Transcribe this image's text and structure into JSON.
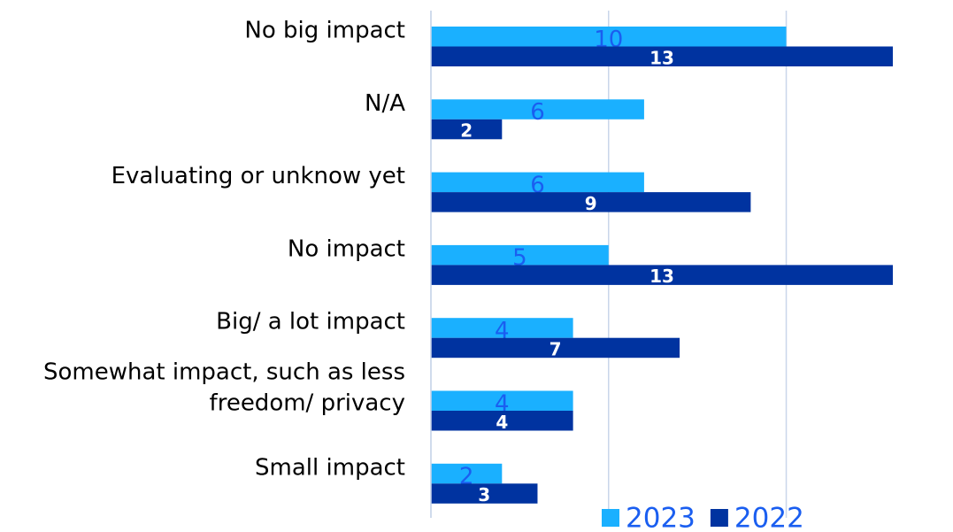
{
  "chart_data": {
    "type": "bar",
    "orientation": "horizontal",
    "categories": [
      "No big impact",
      "N/A",
      "Evaluating or unknow yet",
      "No impact",
      "Big/ a lot impact",
      "Somewhat impact, such as less\nfreedom/ privacy",
      "Small impact"
    ],
    "series": [
      {
        "name": "2023",
        "color": "#1ab0ff",
        "values": [
          10,
          6,
          6,
          5,
          4,
          4,
          2
        ]
      },
      {
        "name": "2022",
        "color": "#0033a0",
        "values": [
          13,
          2,
          9,
          13,
          7,
          4,
          3
        ]
      }
    ],
    "xlim": [
      0,
      13
    ],
    "xticks": [
      0,
      5,
      10
    ],
    "grid": true,
    "legend": "bottom"
  }
}
